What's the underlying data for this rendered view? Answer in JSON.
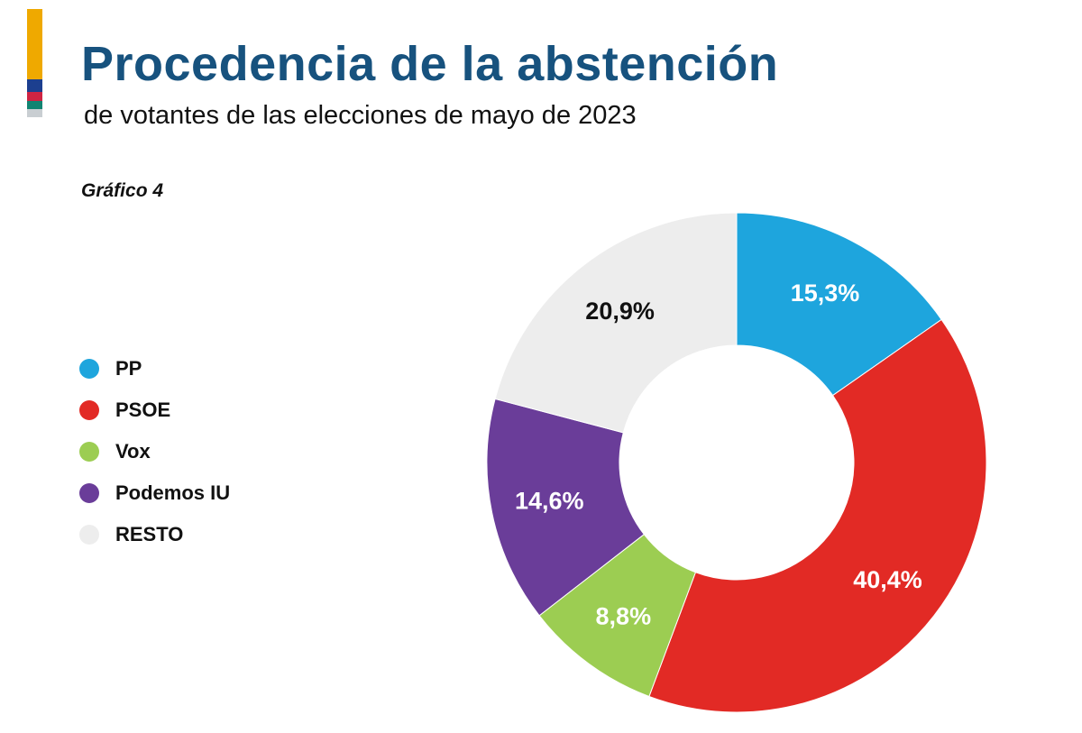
{
  "header": {
    "title": "Procedencia de la abstención",
    "subtitle": "de votantes de las elecciones de mayo de 2023",
    "figure_label": "Gráfico 4"
  },
  "brand": {
    "stripes": [
      {
        "color": "#efa900",
        "height": 78
      },
      {
        "color": "#1c3f8f",
        "height": 14
      },
      {
        "color": "#cf2443",
        "height": 10
      },
      {
        "color": "#128472",
        "height": 9
      },
      {
        "color": "#c9ced2",
        "height": 9
      }
    ]
  },
  "legend": {
    "items": [
      {
        "label": "PP",
        "color": "#1ea5dd"
      },
      {
        "label": "PSOE",
        "color": "#e22a25"
      },
      {
        "label": "Vox",
        "color": "#9ccd52"
      },
      {
        "label": "Podemos IU",
        "color": "#6a3d99"
      },
      {
        "label": "RESTO",
        "color": "#ededed"
      }
    ]
  },
  "chart_data": {
    "type": "pie",
    "subtype": "donut",
    "title": "Procedencia de la abstención",
    "subtitle": "de votantes de las elecciones de mayo de 2023",
    "figure_label": "Gráfico 4",
    "categories": [
      "PP",
      "PSOE",
      "Vox",
      "Podemos IU",
      "RESTO"
    ],
    "values": [
      15.3,
      40.4,
      8.8,
      14.6,
      20.9
    ],
    "value_labels": [
      "15,3%",
      "40,4%",
      "8,8%",
      "14,6%",
      "20,9%"
    ],
    "colors": [
      "#1ea5dd",
      "#e22a25",
      "#9ccd52",
      "#6a3d99",
      "#ededed"
    ],
    "label_colors": [
      "#ffffff",
      "#ffffff",
      "#ffffff",
      "#ffffff",
      "#111111"
    ],
    "start_angle_deg": 0,
    "direction": "clockwise",
    "inner_radius_ratio": 0.47,
    "legend_position": "left",
    "background": "#ffffff"
  }
}
